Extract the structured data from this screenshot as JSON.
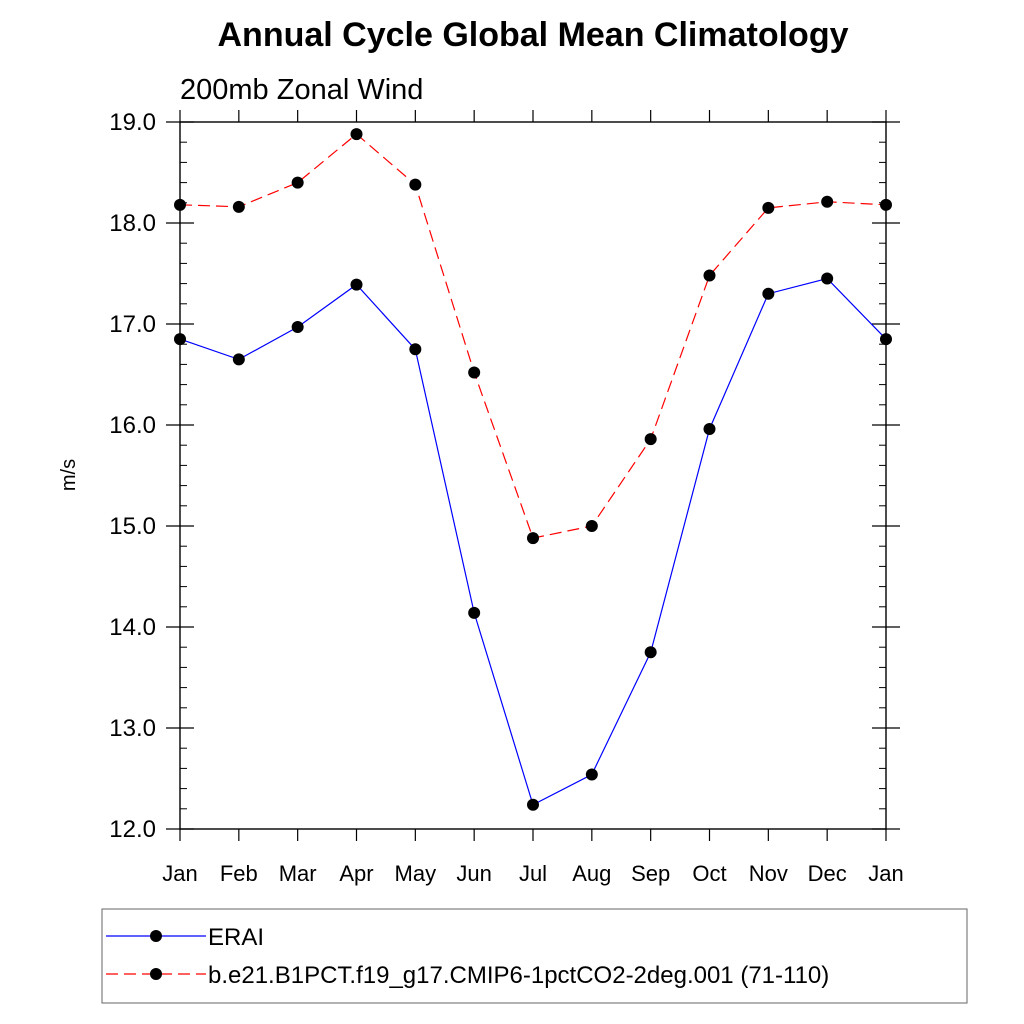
{
  "chart_data": {
    "type": "line",
    "title": "Annual Cycle Global Mean Climatology",
    "subtitle": "200mb Zonal Wind",
    "ylabel": "m/s",
    "xlabel": "",
    "categories": [
      "Jan",
      "Feb",
      "Mar",
      "Apr",
      "May",
      "Jun",
      "Jul",
      "Aug",
      "Sep",
      "Oct",
      "Nov",
      "Dec",
      "Jan"
    ],
    "ylim": [
      12.0,
      19.0
    ],
    "yticks": [
      "12.0",
      "13.0",
      "14.0",
      "15.0",
      "16.0",
      "17.0",
      "18.0",
      "19.0"
    ],
    "grid": false,
    "legend_position": "bottom",
    "series": [
      {
        "name": "ERAI",
        "color": "#0000ff",
        "line_style": "solid",
        "values": [
          16.85,
          16.65,
          16.97,
          17.39,
          16.75,
          14.14,
          12.24,
          12.54,
          13.75,
          15.96,
          17.3,
          17.45,
          16.85
        ]
      },
      {
        "name": "b.e21.B1PCT.f19_g17.CMIP6-1pctCO2-2deg.001 (71-110)",
        "color": "#ff0000",
        "line_style": "dashed",
        "values": [
          18.18,
          18.16,
          18.4,
          18.88,
          18.38,
          16.52,
          14.88,
          15.0,
          15.86,
          17.48,
          18.15,
          18.21,
          18.18
        ]
      }
    ]
  }
}
